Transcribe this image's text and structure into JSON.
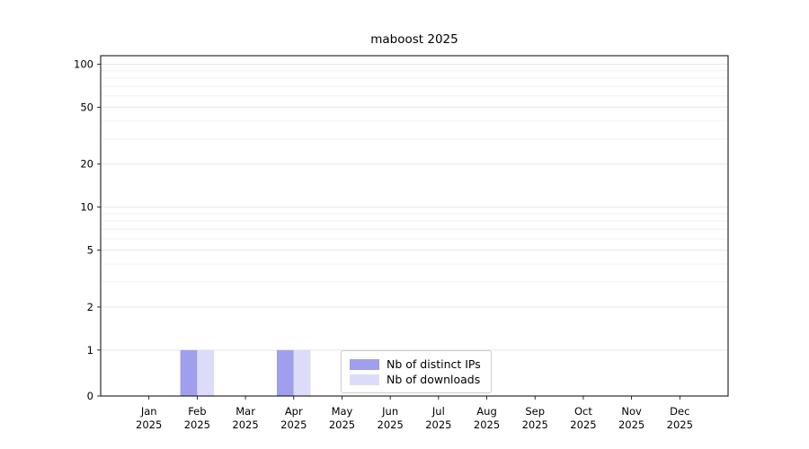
{
  "chart_data": {
    "type": "bar",
    "title": "maboost 2025",
    "scale": "symlog",
    "grid": "horizontal, major and minor, light gray",
    "legend_position": "lower center",
    "xlabel": "",
    "ylabel": "",
    "ylim": [
      0,
      114
    ],
    "yticks": [
      0,
      1,
      2,
      5,
      10,
      20,
      50,
      100
    ],
    "minor_yticks": [
      3,
      4,
      6,
      7,
      8,
      9,
      30,
      40,
      60,
      70,
      80,
      90
    ],
    "categories": [
      "Jan 2025",
      "Feb 2025",
      "Mar 2025",
      "Apr 2025",
      "May 2025",
      "Jun 2025",
      "Jul 2025",
      "Aug 2025",
      "Sep 2025",
      "Oct 2025",
      "Nov 2025",
      "Dec 2025"
    ],
    "series": [
      {
        "name": "Nb of distinct IPs",
        "color": "#9f9fee",
        "values": [
          0,
          1,
          0,
          1,
          0,
          0,
          0,
          0,
          0,
          0,
          0,
          0
        ]
      },
      {
        "name": "Nb of downloads",
        "color": "#dcdcf9",
        "values": [
          0,
          1,
          0,
          1,
          0,
          0,
          0,
          0,
          0,
          0,
          0,
          0
        ]
      }
    ],
    "colors": {
      "axis": "#000000",
      "major_grid": "#e7e7e7",
      "minor_grid": "#f0f0f0",
      "legend_border": "#cccccc",
      "background": "#ffffff"
    }
  }
}
